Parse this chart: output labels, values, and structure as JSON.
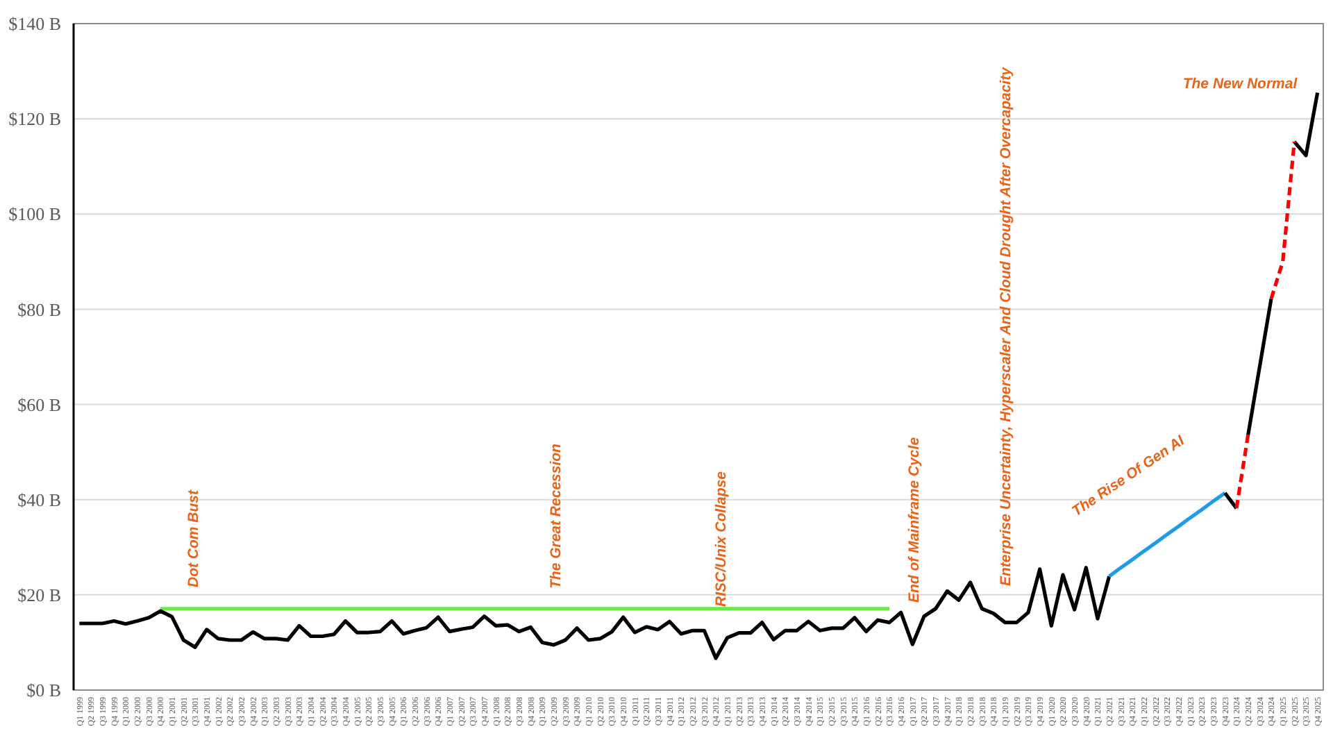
{
  "chart_data": {
    "type": "line",
    "categories": [
      "Q1 1999",
      "Q2 1999",
      "Q3 1999",
      "Q4 1999",
      "Q1 2000",
      "Q2 2000",
      "Q3 2000",
      "Q4 2000",
      "Q1 2001",
      "Q2 2001",
      "Q3 2001",
      "Q4 2001",
      "Q1 2002",
      "Q2 2002",
      "Q3 2002",
      "Q4 2002",
      "Q1 2003",
      "Q2 2003",
      "Q3 2003",
      "Q4 2003",
      "Q1 2004",
      "Q2 2004",
      "Q3 2004",
      "Q4 2004",
      "Q1 2005",
      "Q2 2005",
      "Q3 2005",
      "Q4 2005",
      "Q1 2006",
      "Q2 2006",
      "Q3 2006",
      "Q4 2006",
      "Q1 2007",
      "Q2 2007",
      "Q3 2007",
      "Q4 2007",
      "Q1 2008",
      "Q2 2008",
      "Q3 2008",
      "Q4 2008",
      "Q1 2009",
      "Q2 2009",
      "Q3 2009",
      "Q4 2009",
      "Q1 2010",
      "Q2 2010",
      "Q3 2010",
      "Q4 2010",
      "Q1 2011",
      "Q2 2011",
      "Q3 2011",
      "Q4 2011",
      "Q1 2012",
      "Q2 2012",
      "Q3 2012",
      "Q4 2012",
      "Q1 2013",
      "Q2 2013",
      "Q3 2013",
      "Q4 2013",
      "Q1 2014",
      "Q2 2014",
      "Q3 2014",
      "Q4 2014",
      "Q1 2015",
      "Q2 2015",
      "Q3 2015",
      "Q4 2015",
      "Q1 2016",
      "Q2 2016",
      "Q3 2016",
      "Q4 2016",
      "Q1 2017",
      "Q2 2017",
      "Q3 2017",
      "Q4 2017",
      "Q1 2018",
      "Q2 2018",
      "Q3 2018",
      "Q4 2018",
      "Q1 2019",
      "Q2 2019",
      "Q3 2019",
      "Q4 2019",
      "Q1 2020",
      "Q2 2020",
      "Q3 2020",
      "Q4 2020",
      "Q1 2021",
      "Q2 2021",
      "Q3 2021",
      "Q4 2021",
      "Q1 2022",
      "Q2 2022",
      "Q3 2022",
      "Q4 2022",
      "Q1 2023",
      "Q2 2023",
      "Q3 2023",
      "Q4 2023",
      "Q1 2024",
      "Q2 2024",
      "Q3 2024",
      "Q4 2024",
      "Q1 2025",
      "Q2 2025",
      "Q3 2025",
      "Q4 2025"
    ],
    "ylim": [
      0,
      140
    ],
    "yticks": [
      {
        "value": 0,
        "label": "$0 B"
      },
      {
        "value": 20,
        "label": "$20 B"
      },
      {
        "value": 40,
        "label": "$40 B"
      },
      {
        "value": 60,
        "label": "$60 B"
      },
      {
        "value": 80,
        "label": "$80 B"
      },
      {
        "value": 100,
        "label": "$100 B"
      },
      {
        "value": 120,
        "label": "$120 B"
      },
      {
        "value": 140,
        "label": "$140 B"
      }
    ],
    "grid": "y",
    "series": [
      {
        "color": "#66ee44",
        "values": [
          null,
          null,
          null,
          null,
          null,
          null,
          null,
          17.1,
          17.1,
          17.1,
          17.1,
          17.1,
          17.1,
          17.1,
          17.1,
          17.1,
          17.1,
          17.1,
          17.1,
          17.1,
          17.1,
          17.1,
          17.1,
          17.1,
          17.1,
          17.1,
          17.1,
          17.1,
          17.1,
          17.1,
          17.1,
          17.1,
          17.1,
          17.1,
          17.1,
          17.1,
          17.1,
          17.1,
          17.1,
          17.1,
          17.1,
          17.1,
          17.1,
          17.1,
          17.1,
          17.1,
          17.1,
          17.1,
          17.1,
          17.1,
          17.1,
          17.1,
          17.1,
          17.1,
          17.1,
          17.1,
          17.1,
          17.1,
          17.1,
          17.1,
          17.1,
          17.1,
          17.1,
          17.1,
          17.1,
          17.1,
          17.1,
          17.1,
          17.1,
          17.1,
          17.1,
          null,
          null,
          null,
          null,
          null,
          null,
          null,
          null,
          null,
          null,
          null,
          null,
          null,
          null,
          null,
          null,
          null,
          null,
          null,
          null,
          null,
          null,
          null,
          null,
          null,
          null,
          null,
          null,
          null,
          null,
          null,
          null,
          null,
          null,
          null,
          null,
          null
        ]
      },
      {
        "color": "#000000",
        "values": [
          14.0,
          14.0,
          14.0,
          14.5,
          13.9,
          14.5,
          15.2,
          16.6,
          15.4,
          10.5,
          9.0,
          12.7,
          10.8,
          10.5,
          10.5,
          12.2,
          10.8,
          10.8,
          10.5,
          13.5,
          11.3,
          11.3,
          11.7,
          14.5,
          12.1,
          12.1,
          12.3,
          14.5,
          11.8,
          12.5,
          13.1,
          15.3,
          12.3,
          12.8,
          13.2,
          15.5,
          13.5,
          13.7,
          12.3,
          13.2,
          10.0,
          9.5,
          10.5,
          13.0,
          10.5,
          10.8,
          12.2,
          15.3,
          12.1,
          13.3,
          12.7,
          14.4,
          11.8,
          12.5,
          12.5,
          6.7,
          11.0,
          12.0,
          12.0,
          14.2,
          10.6,
          12.5,
          12.5,
          14.4,
          12.5,
          13.0,
          13.0,
          15.2,
          12.3,
          14.7,
          14.2,
          16.3,
          9.6,
          15.5,
          17.1,
          20.8,
          18.9,
          22.6,
          17.1,
          16.1,
          14.2,
          14.2,
          16.3,
          25.4,
          13.5,
          24.2,
          16.9,
          25.7,
          15.0,
          23.9,
          null,
          null,
          null,
          null,
          null,
          null,
          null,
          null,
          null,
          null,
          null,
          53.6,
          67.9,
          82.2,
          null,
          null,
          null,
          null
        ]
      },
      {
        "color": "#1f9be8",
        "values": [
          null,
          null,
          null,
          null,
          null,
          null,
          null,
          null,
          null,
          null,
          null,
          null,
          null,
          null,
          null,
          null,
          null,
          null,
          null,
          null,
          null,
          null,
          null,
          null,
          null,
          null,
          null,
          null,
          null,
          null,
          null,
          null,
          null,
          null,
          null,
          null,
          null,
          null,
          null,
          null,
          null,
          null,
          null,
          null,
          null,
          null,
          null,
          null,
          null,
          null,
          null,
          null,
          null,
          null,
          null,
          null,
          null,
          null,
          null,
          null,
          null,
          null,
          null,
          null,
          null,
          null,
          null,
          null,
          null,
          null,
          null,
          null,
          null,
          null,
          null,
          null,
          null,
          null,
          null,
          null,
          null,
          null,
          null,
          null,
          null,
          null,
          null,
          null,
          null,
          23.9,
          25.7,
          27.4,
          29.2,
          30.9,
          32.7,
          34.4,
          36.2,
          37.9,
          39.7,
          41.4,
          null,
          null,
          null,
          null,
          null,
          null,
          null,
          null
        ]
      },
      {
        "color": "#000000",
        "values": [
          null,
          null,
          null,
          null,
          null,
          null,
          null,
          null,
          null,
          null,
          null,
          null,
          null,
          null,
          null,
          null,
          null,
          null,
          null,
          null,
          null,
          null,
          null,
          null,
          null,
          null,
          null,
          null,
          null,
          null,
          null,
          null,
          null,
          null,
          null,
          null,
          null,
          null,
          null,
          null,
          null,
          null,
          null,
          null,
          null,
          null,
          null,
          null,
          null,
          null,
          null,
          null,
          null,
          null,
          null,
          null,
          null,
          null,
          null,
          null,
          null,
          null,
          null,
          null,
          null,
          null,
          null,
          null,
          null,
          null,
          null,
          null,
          null,
          null,
          null,
          null,
          null,
          null,
          null,
          null,
          null,
          null,
          null,
          null,
          null,
          null,
          null,
          null,
          null,
          null,
          null,
          null,
          null,
          null,
          null,
          null,
          null,
          null,
          null,
          41.4,
          38.2,
          null,
          null,
          null,
          null,
          115.2,
          112.3,
          125.5
        ]
      },
      {
        "color": "#ff0000",
        "line_style": "dashed",
        "values": [
          null,
          null,
          null,
          null,
          null,
          null,
          null,
          null,
          null,
          null,
          null,
          null,
          null,
          null,
          null,
          null,
          null,
          null,
          null,
          null,
          null,
          null,
          null,
          null,
          null,
          null,
          null,
          null,
          null,
          null,
          null,
          null,
          null,
          null,
          null,
          null,
          null,
          null,
          null,
          null,
          null,
          null,
          null,
          null,
          null,
          null,
          null,
          null,
          null,
          null,
          null,
          null,
          null,
          null,
          null,
          null,
          null,
          null,
          null,
          null,
          null,
          null,
          null,
          null,
          null,
          null,
          null,
          null,
          null,
          null,
          null,
          null,
          null,
          null,
          null,
          null,
          null,
          null,
          null,
          null,
          null,
          null,
          null,
          null,
          null,
          null,
          null,
          null,
          null,
          null,
          null,
          null,
          null,
          null,
          null,
          null,
          null,
          null,
          null,
          null,
          38.2,
          53.6,
          null,
          82.2,
          90.0,
          115.2,
          null,
          null
        ]
      }
    ],
    "annotations": [
      "Dot Com Bust",
      "The Great Recession",
      "RISC/Unix Collapse",
      "End of Mainframe Cycle",
      "Enterprise Uncertainty, Hyperscaler And Cloud Drought After Overcapacity",
      "The Rise Of Gen AI",
      "The New Normal"
    ]
  }
}
